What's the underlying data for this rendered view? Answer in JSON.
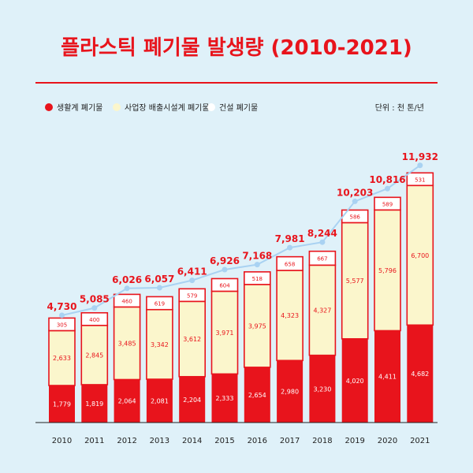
{
  "title": "플라스틱 폐기물 발생량 (2010-2021)",
  "unit_label": "단위 : 천 톤/년",
  "colors": {
    "accent": "#e8141c",
    "household": "#e8141c",
    "industrial": "#fbf6cc",
    "construction": "#ffffff",
    "trend_line": "#a9d2f2",
    "background": "#dff1f9"
  },
  "chart_data": {
    "type": "bar",
    "stacked": true,
    "title": "플라스틱 폐기물 발생량 (2010-2021)",
    "xlabel": "",
    "ylabel": "",
    "unit": "천 톤/년",
    "legend_position": "top-left",
    "grid": false,
    "categories": [
      "2010",
      "2011",
      "2012",
      "2013",
      "2014",
      "2015",
      "2016",
      "2017",
      "2018",
      "2019",
      "2020",
      "2021"
    ],
    "series": [
      {
        "name": "생활계 폐기물",
        "color": "#e8141c",
        "values": [
          1779,
          1819,
          2064,
          2081,
          2204,
          2333,
          2654,
          2980,
          3230,
          4020,
          4411,
          4682
        ],
        "labels": [
          "1,779",
          "1,819",
          "2,064",
          "2,081",
          "2,204",
          "2,333",
          "2,654",
          "2,980",
          "3,230",
          "4,020",
          "4,411",
          "4,682"
        ]
      },
      {
        "name": "사업장 배출시설계 폐기물",
        "color": "#fbf6cc",
        "values": [
          2633,
          2845,
          3485,
          3342,
          3612,
          3971,
          3975,
          4323,
          4327,
          5577,
          5796,
          6700
        ],
        "labels": [
          "2,633",
          "2,845",
          "3,485",
          "3,342",
          "3,612",
          "3,971",
          "3,975",
          "4,323",
          "4,327",
          "5,577",
          "5,796",
          "6,700"
        ]
      },
      {
        "name": "건설 폐기물",
        "color": "#ffffff",
        "values": [
          305,
          400,
          460,
          619,
          579,
          604,
          518,
          658,
          667,
          586,
          589,
          531
        ],
        "labels": [
          "305",
          "400",
          "460",
          "619",
          "579",
          "604",
          "518",
          "658",
          "667",
          "586",
          "589",
          "531"
        ]
      }
    ],
    "totals": [
      4730,
      5085,
      6026,
      6057,
      6411,
      6926,
      7168,
      7981,
      8244,
      10203,
      10816,
      11932
    ],
    "total_labels": [
      "4,730",
      "5,085",
      "6,026",
      "6,057",
      "6,411",
      "6,926",
      "7,168",
      "7,981",
      "8,244",
      "10,203",
      "10,816",
      "11,932"
    ],
    "ylim": [
      0,
      12500
    ]
  }
}
